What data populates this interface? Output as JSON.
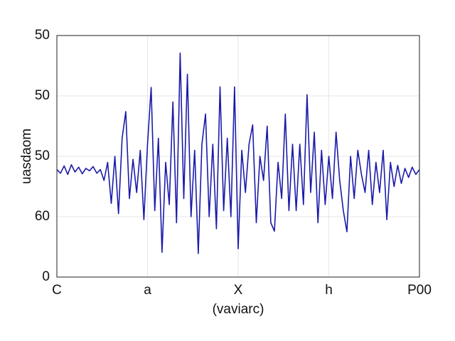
{
  "chart_data": {
    "type": "line",
    "xlabel": "(vaviarc)",
    "ylabel": "uasdaom",
    "x": [
      0,
      0.04,
      0.08,
      0.12,
      0.16,
      0.2,
      0.24,
      0.28,
      0.32,
      0.36,
      0.4,
      0.44,
      0.48,
      0.52,
      0.56,
      0.6,
      0.64,
      0.68,
      0.72,
      0.76,
      0.8,
      0.84,
      0.88,
      0.92,
      0.96,
      1,
      1.04,
      1.08,
      1.12,
      1.16,
      1.2,
      1.24,
      1.28,
      1.32,
      1.36,
      1.4,
      1.44,
      1.48,
      1.52,
      1.56,
      1.6,
      1.64,
      1.68,
      1.72,
      1.76,
      1.8,
      1.84,
      1.88,
      1.92,
      1.96,
      2,
      2.04,
      2.08,
      2.12,
      2.16,
      2.2,
      2.24,
      2.28,
      2.32,
      2.36,
      2.4,
      2.44,
      2.48,
      2.52,
      2.56,
      2.6,
      2.64,
      2.68,
      2.72,
      2.76,
      2.8,
      2.84,
      2.88,
      2.92,
      2.96,
      3,
      3.04,
      3.08,
      3.12,
      3.16,
      3.2,
      3.24,
      3.28,
      3.32,
      3.36,
      3.4,
      3.44,
      3.48,
      3.52,
      3.56,
      3.6,
      3.64,
      3.68,
      3.72,
      3.76,
      3.8,
      3.84,
      3.88,
      3.92,
      3.96,
      4
    ],
    "series": [
      {
        "color": "#1a1aaa",
        "values": [
          1.78,
          1.72,
          1.84,
          1.7,
          1.86,
          1.74,
          1.82,
          1.71,
          1.8,
          1.76,
          1.83,
          1.72,
          1.78,
          1.6,
          1.9,
          1.22,
          2.0,
          1.05,
          2.3,
          2.74,
          1.3,
          1.95,
          1.4,
          2.1,
          0.95,
          2.2,
          3.14,
          1.1,
          2.3,
          0.41,
          1.9,
          1.2,
          2.9,
          0.9,
          3.71,
          1.3,
          3.36,
          1.0,
          2.1,
          0.39,
          2.2,
          2.7,
          1.0,
          2.2,
          0.8,
          3.15,
          1.1,
          2.3,
          1.0,
          3.15,
          0.47,
          2.1,
          1.4,
          2.2,
          2.52,
          0.9,
          2.0,
          1.6,
          2.5,
          0.9,
          0.76,
          1.9,
          1.3,
          2.7,
          1.1,
          2.2,
          1.1,
          2.2,
          1.2,
          3.02,
          1.4,
          2.4,
          0.9,
          2.1,
          1.2,
          2.0,
          1.3,
          2.4,
          1.6,
          1.1,
          0.75,
          2.0,
          1.3,
          2.1,
          1.7,
          1.4,
          2.1,
          1.2,
          1.9,
          1.4,
          2.1,
          0.95,
          1.9,
          1.5,
          1.85,
          1.55,
          1.8,
          1.65,
          1.82,
          1.7,
          1.78
        ]
      }
    ],
    "xlim": [
      0,
      4
    ],
    "xticks": [
      {
        "value": 0,
        "label": "C"
      },
      {
        "value": 1,
        "label": "a"
      },
      {
        "value": 2,
        "label": "X"
      },
      {
        "value": 3,
        "label": "h"
      },
      {
        "value": 4,
        "label": "P00"
      }
    ],
    "ylim": [
      0,
      4
    ],
    "yticks": [
      0,
      {
        "value": 1,
        "label": "60"
      },
      {
        "value": 2,
        "label": "50"
      },
      {
        "value": 3,
        "label": "50"
      },
      {
        "value": 4,
        "label": "50"
      }
    ],
    "grid": true
  }
}
